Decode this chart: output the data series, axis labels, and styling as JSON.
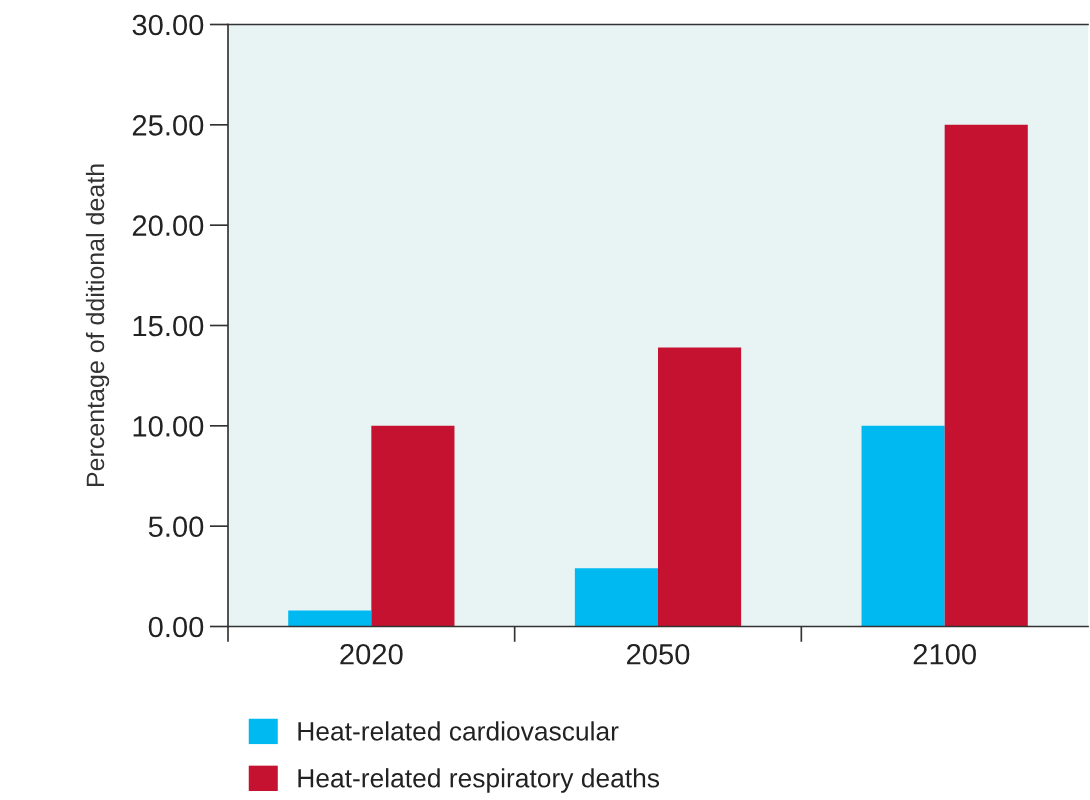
{
  "chart_data": {
    "type": "bar",
    "ylabel": "Percentage of dditional death",
    "categories": [
      "2020",
      "2050",
      "2100"
    ],
    "series": [
      {
        "name": "Heat-related cardiovascular",
        "color": "#00b9f1",
        "values": [
          0.8,
          2.9,
          10.0
        ]
      },
      {
        "name": "Heat-related respiratory deaths",
        "color": "#c41230",
        "values": [
          10.0,
          13.9,
          25.0
        ]
      }
    ],
    "ylim": [
      0,
      30
    ],
    "yticks": [
      {
        "value": 0,
        "label": "0.00"
      },
      {
        "value": 5,
        "label": "5.00"
      },
      {
        "value": 10,
        "label": "10.00"
      },
      {
        "value": 15,
        "label": "15.00"
      },
      {
        "value": 20,
        "label": "20.00"
      },
      {
        "value": 25,
        "label": "25.00"
      },
      {
        "value": 30,
        "label": "30.00"
      }
    ],
    "legend": "bottom"
  }
}
